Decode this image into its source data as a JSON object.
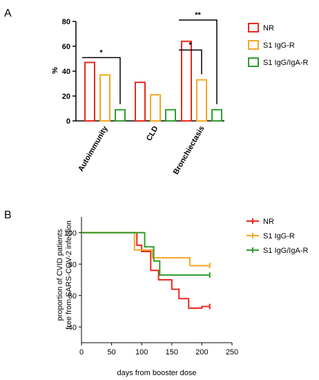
{
  "chart_data": [
    {
      "panel": "A",
      "type": "bar",
      "title": "",
      "xlabel": "",
      "ylabel": "%",
      "ylim": [
        0,
        80
      ],
      "yticks": [
        0,
        20,
        40,
        60,
        80
      ],
      "grid": false,
      "legend_position": "right",
      "categories": [
        "Autoimmunity",
        "CLD",
        "Bronchiectasis"
      ],
      "series": [
        {
          "name": "NR",
          "color": "#e8281e",
          "values": [
            47,
            31,
            64
          ]
        },
        {
          "name": "S1 IgG-R",
          "color": "#f5a623",
          "values": [
            37,
            21,
            33
          ]
        },
        {
          "name": "S1 IgG/IgA-R",
          "color": "#2e9e2e",
          "values": [
            9,
            9,
            9
          ]
        }
      ],
      "significance": [
        {
          "label": "*",
          "category": "Autoimmunity",
          "from_series": 0,
          "to_series": 2
        },
        {
          "label": "*",
          "category": "Bronchiectasis",
          "from_series": 0,
          "to_series": 1
        },
        {
          "label": "**",
          "category": "Bronchiectasis",
          "from_series": 0,
          "to_series": 2
        }
      ]
    },
    {
      "panel": "B",
      "type": "line",
      "title": "",
      "xlabel": "days from booster dose",
      "ylabel_line1": "proportion of CVID patients",
      "ylabel_line2": "free from SARS-COV-2 infection",
      "xlim": [
        0,
        250
      ],
      "ylim": [
        30,
        110
      ],
      "xticks": [
        0,
        50,
        100,
        150,
        200,
        250
      ],
      "yticks": [
        40,
        60,
        80,
        100
      ],
      "grid": false,
      "legend_position": "right",
      "series": [
        {
          "name": "NR",
          "color": "#e8281e",
          "steps": [
            [
              0,
              100
            ],
            [
              92,
              92
            ],
            [
              100,
              88
            ],
            [
              115,
              76
            ],
            [
              128,
              70
            ],
            [
              150,
              64
            ],
            [
              162,
              58
            ],
            [
              178,
              52
            ],
            [
              200,
              53
            ],
            [
              213,
              53
            ]
          ]
        },
        {
          "name": "S1 IgG-R",
          "color": "#f5a623",
          "steps": [
            [
              0,
              100
            ],
            [
              88,
              89
            ],
            [
              118,
              84
            ],
            [
              180,
              79
            ],
            [
              213,
              79
            ]
          ]
        },
        {
          "name": "S1 IgG/IgA-R",
          "color": "#2e9e2e",
          "steps": [
            [
              0,
              100
            ],
            [
              105,
              91
            ],
            [
              120,
              82
            ],
            [
              130,
              73
            ],
            [
              213,
              73
            ]
          ]
        }
      ]
    }
  ]
}
